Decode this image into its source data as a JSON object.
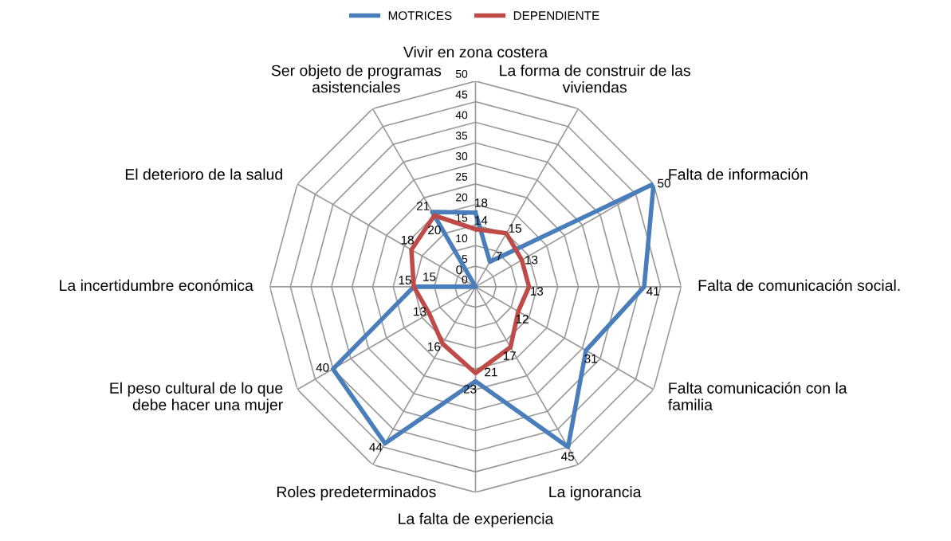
{
  "chart_data": {
    "type": "radar",
    "categories": [
      "Vivir en zona costera",
      "La forma de construir de las\nviviendas",
      "Falta de información",
      "Falta de comunicación social.",
      "Falta comunicación con la\nfamilia",
      "La ignorancia",
      "La falta de experiencia",
      "Roles predeterminados",
      "El peso cultural de lo que\ndebe hacer una mujer",
      "La incertidumbre económica",
      "El deterioro de la salud",
      "Ser objeto de programas\nasistenciales"
    ],
    "series": [
      {
        "name": "MOTRICES",
        "color": "#4a7ebb",
        "values": [
          18,
          7,
          50,
          41,
          31,
          45,
          23,
          44,
          40,
          15,
          0,
          21
        ]
      },
      {
        "name": "DEPENDIENTE",
        "color": "#be4b48",
        "values": [
          14,
          15,
          13,
          13,
          12,
          17,
          21,
          16,
          13,
          15,
          18,
          20
        ]
      }
    ],
    "ylim": [
      0,
      50
    ],
    "yticks": [
      0,
      5,
      10,
      15,
      20,
      25,
      30,
      35,
      40,
      45,
      50
    ],
    "grid": true,
    "legend": "top",
    "data_labels": true
  }
}
